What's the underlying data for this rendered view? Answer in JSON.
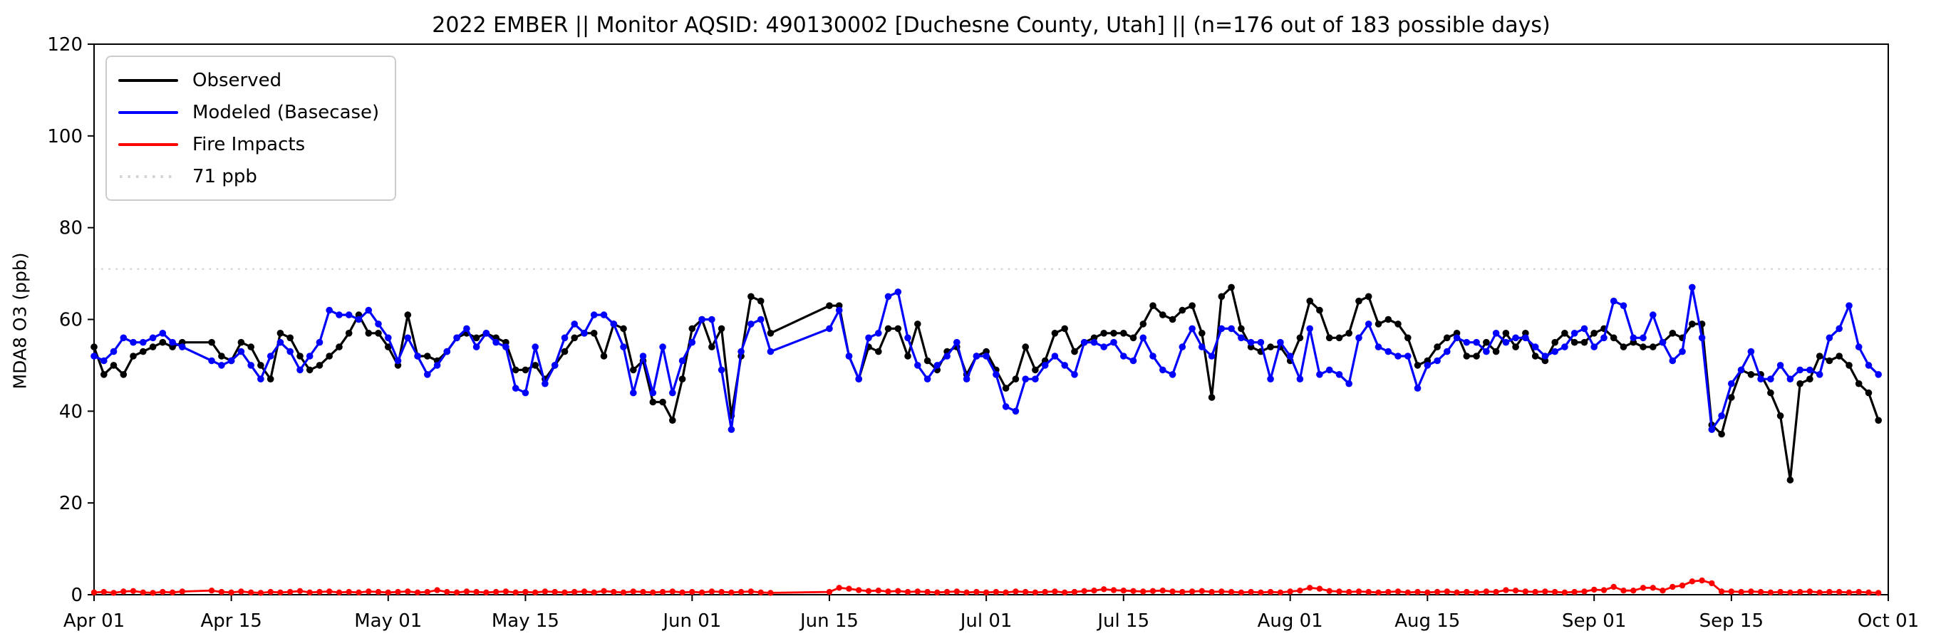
{
  "chart_data": {
    "type": "line",
    "title": "2022 EMBER || Monitor AQSID: 490130002 [Duchesne County, Utah] || (n=176 out of 183 possible days)",
    "ylabel": "MDA8 O3 (ppb)",
    "ylim": [
      0,
      120
    ],
    "yticks": [
      0,
      20,
      40,
      60,
      80,
      100,
      120
    ],
    "x_total_days": 183,
    "x_start": "Apr 01",
    "x_end": "Oct 01",
    "xtick_labels": [
      "Apr 01",
      "Apr 15",
      "May 01",
      "May 15",
      "Jun 01",
      "Jun 15",
      "Jul 01",
      "Jul 15",
      "Aug 01",
      "Aug 15",
      "Sep 01",
      "Sep 15",
      "Oct 01"
    ],
    "xtick_positions": [
      0,
      14,
      30,
      44,
      61,
      75,
      91,
      105,
      122,
      136,
      153,
      167,
      183
    ],
    "grid": false,
    "legend_position": "upper left",
    "note": "daily values Apr 1 - Sep 30 2022; null = missing monitoring day (7 missing of 183)",
    "reference_line": {
      "value": 71,
      "label": "71 ppb",
      "color": "#d3d3d3",
      "style": "dotted"
    },
    "series": [
      {
        "name": "Observed",
        "color": "#000000",
        "values": [
          54,
          48,
          50,
          48,
          52,
          53,
          54,
          55,
          54,
          55,
          null,
          null,
          55,
          52,
          51,
          55,
          54,
          50,
          47,
          57,
          56,
          52,
          49,
          50,
          52,
          54,
          57,
          61,
          57,
          57,
          54,
          50,
          61,
          52,
          52,
          51,
          53,
          56,
          57,
          56,
          57,
          56,
          55,
          49,
          49,
          50,
          47,
          50,
          53,
          56,
          57,
          57,
          52,
          59,
          58,
          49,
          51,
          42,
          42,
          38,
          47,
          58,
          60,
          54,
          58,
          39,
          52,
          65,
          64,
          57,
          null,
          null,
          null,
          null,
          null,
          63,
          63,
          52,
          47,
          54,
          53,
          58,
          58,
          52,
          59,
          51,
          49,
          53,
          54,
          48,
          52,
          53,
          49,
          45,
          47,
          54,
          49,
          51,
          57,
          58,
          53,
          55,
          56,
          57,
          57,
          57,
          56,
          59,
          63,
          61,
          60,
          62,
          63,
          57,
          43,
          65,
          67,
          58,
          54,
          53,
          54,
          54,
          51,
          56,
          64,
          62,
          56,
          56,
          57,
          64,
          65,
          59,
          60,
          59,
          56,
          50,
          51,
          54,
          56,
          57,
          52,
          52,
          55,
          53,
          57,
          54,
          57,
          52,
          51,
          55,
          57,
          55,
          55,
          57,
          58,
          56,
          54,
          55,
          54,
          54,
          55,
          57,
          56,
          59,
          59,
          37,
          35,
          43,
          49,
          48,
          48,
          44,
          39,
          25,
          46,
          47,
          52,
          51,
          52,
          50,
          46,
          44,
          38
        ]
      },
      {
        "name": "Modeled (Basecase)",
        "color": "#0000ff",
        "values": [
          52,
          51,
          53,
          56,
          55,
          55,
          56,
          57,
          55,
          54,
          null,
          null,
          51,
          50,
          51,
          53,
          50,
          47,
          52,
          55,
          53,
          49,
          52,
          55,
          62,
          61,
          61,
          60,
          62,
          59,
          56,
          51,
          56,
          52,
          48,
          50,
          53,
          56,
          58,
          54,
          57,
          55,
          54,
          45,
          44,
          54,
          46,
          50,
          56,
          59,
          57,
          61,
          61,
          59,
          54,
          44,
          52,
          44,
          54,
          44,
          51,
          55,
          60,
          60,
          49,
          36,
          53,
          59,
          60,
          53,
          null,
          null,
          null,
          null,
          null,
          58,
          62,
          52,
          47,
          56,
          57,
          65,
          66,
          56,
          50,
          47,
          50,
          52,
          55,
          47,
          52,
          52,
          48,
          41,
          40,
          47,
          47,
          50,
          52,
          50,
          48,
          55,
          55,
          54,
          55,
          52,
          51,
          56,
          52,
          49,
          48,
          54,
          58,
          54,
          52,
          58,
          58,
          56,
          55,
          55,
          47,
          55,
          52,
          47,
          58,
          48,
          49,
          48,
          46,
          56,
          59,
          54,
          53,
          52,
          52,
          45,
          50,
          51,
          53,
          56,
          55,
          55,
          53,
          57,
          55,
          56,
          56,
          54,
          52,
          53,
          54,
          57,
          58,
          54,
          56,
          64,
          63,
          56,
          56,
          61,
          55,
          51,
          53,
          67,
          56,
          36,
          39,
          46,
          49,
          53,
          47,
          47,
          50,
          47,
          49,
          49,
          48,
          56,
          58,
          63,
          54,
          50,
          48
        ]
      },
      {
        "name": "Fire Impacts",
        "color": "#ff0000",
        "values": [
          0.5,
          0.6,
          0.4,
          0.7,
          0.8,
          0.5,
          0.4,
          0.6,
          0.5,
          0.7,
          null,
          null,
          0.9,
          0.6,
          0.5,
          0.7,
          0.5,
          0.4,
          0.6,
          0.5,
          0.6,
          0.8,
          0.5,
          0.6,
          0.7,
          0.5,
          0.6,
          0.5,
          0.7,
          0.6,
          0.5,
          0.6,
          0.7,
          0.5,
          0.6,
          1.0,
          0.6,
          0.5,
          0.7,
          0.6,
          0.5,
          0.6,
          0.7,
          0.5,
          0.6,
          0.5,
          0.7,
          0.6,
          0.5,
          0.6,
          0.7,
          0.5,
          0.8,
          0.6,
          0.5,
          0.7,
          0.6,
          0.5,
          0.6,
          0.7,
          0.5,
          0.6,
          0.5,
          0.7,
          0.6,
          0.5,
          0.6,
          0.7,
          0.5,
          0.4,
          null,
          null,
          null,
          null,
          null,
          0.6,
          1.5,
          1.3,
          1.0,
          0.8,
          0.9,
          0.7,
          0.8,
          0.6,
          0.7,
          0.6,
          0.5,
          0.6,
          0.7,
          0.5,
          0.6,
          0.5,
          0.6,
          0.5,
          0.7,
          0.6,
          0.5,
          0.6,
          0.7,
          0.5,
          0.6,
          0.8,
          0.9,
          1.2,
          1.0,
          0.9,
          0.8,
          0.7,
          0.8,
          0.9,
          0.7,
          0.6,
          0.7,
          0.8,
          0.6,
          0.7,
          0.6,
          0.5,
          0.6,
          0.5,
          0.6,
          0.5,
          0.7,
          0.9,
          1.5,
          1.3,
          0.8,
          0.7,
          0.6,
          0.7,
          0.6,
          0.5,
          0.6,
          0.7,
          0.5,
          0.6,
          0.5,
          0.6,
          0.7,
          0.5,
          0.6,
          0.5,
          0.7,
          0.6,
          1.0,
          0.9,
          0.7,
          0.6,
          0.7,
          0.6,
          0.5,
          0.6,
          0.7,
          1.1,
          1.0,
          1.7,
          0.9,
          0.9,
          1.5,
          1.5,
          0.9,
          1.7,
          2.0,
          2.9,
          3.1,
          2.5,
          0.7,
          0.7,
          0.6,
          0.7,
          0.6,
          0.5,
          0.6,
          0.5,
          0.6,
          0.7,
          0.5,
          0.6,
          0.6,
          0.5,
          0.6,
          0.5,
          0.4
        ]
      }
    ]
  },
  "legend": {
    "items": [
      {
        "label": "Observed",
        "color": "#000000",
        "style": "solid"
      },
      {
        "label": "Modeled (Basecase)",
        "color": "#0000ff",
        "style": "solid"
      },
      {
        "label": "Fire Impacts",
        "color": "#ff0000",
        "style": "solid"
      },
      {
        "label": "71 ppb",
        "color": "#d3d3d3",
        "style": "dotted"
      }
    ]
  },
  "colors": {
    "observed": "#000000",
    "modeled": "#0000ff",
    "fire": "#ff0000",
    "reference": "#d3d3d3",
    "axis": "#000000",
    "background": "#ffffff",
    "legend_border": "#cccccc"
  }
}
